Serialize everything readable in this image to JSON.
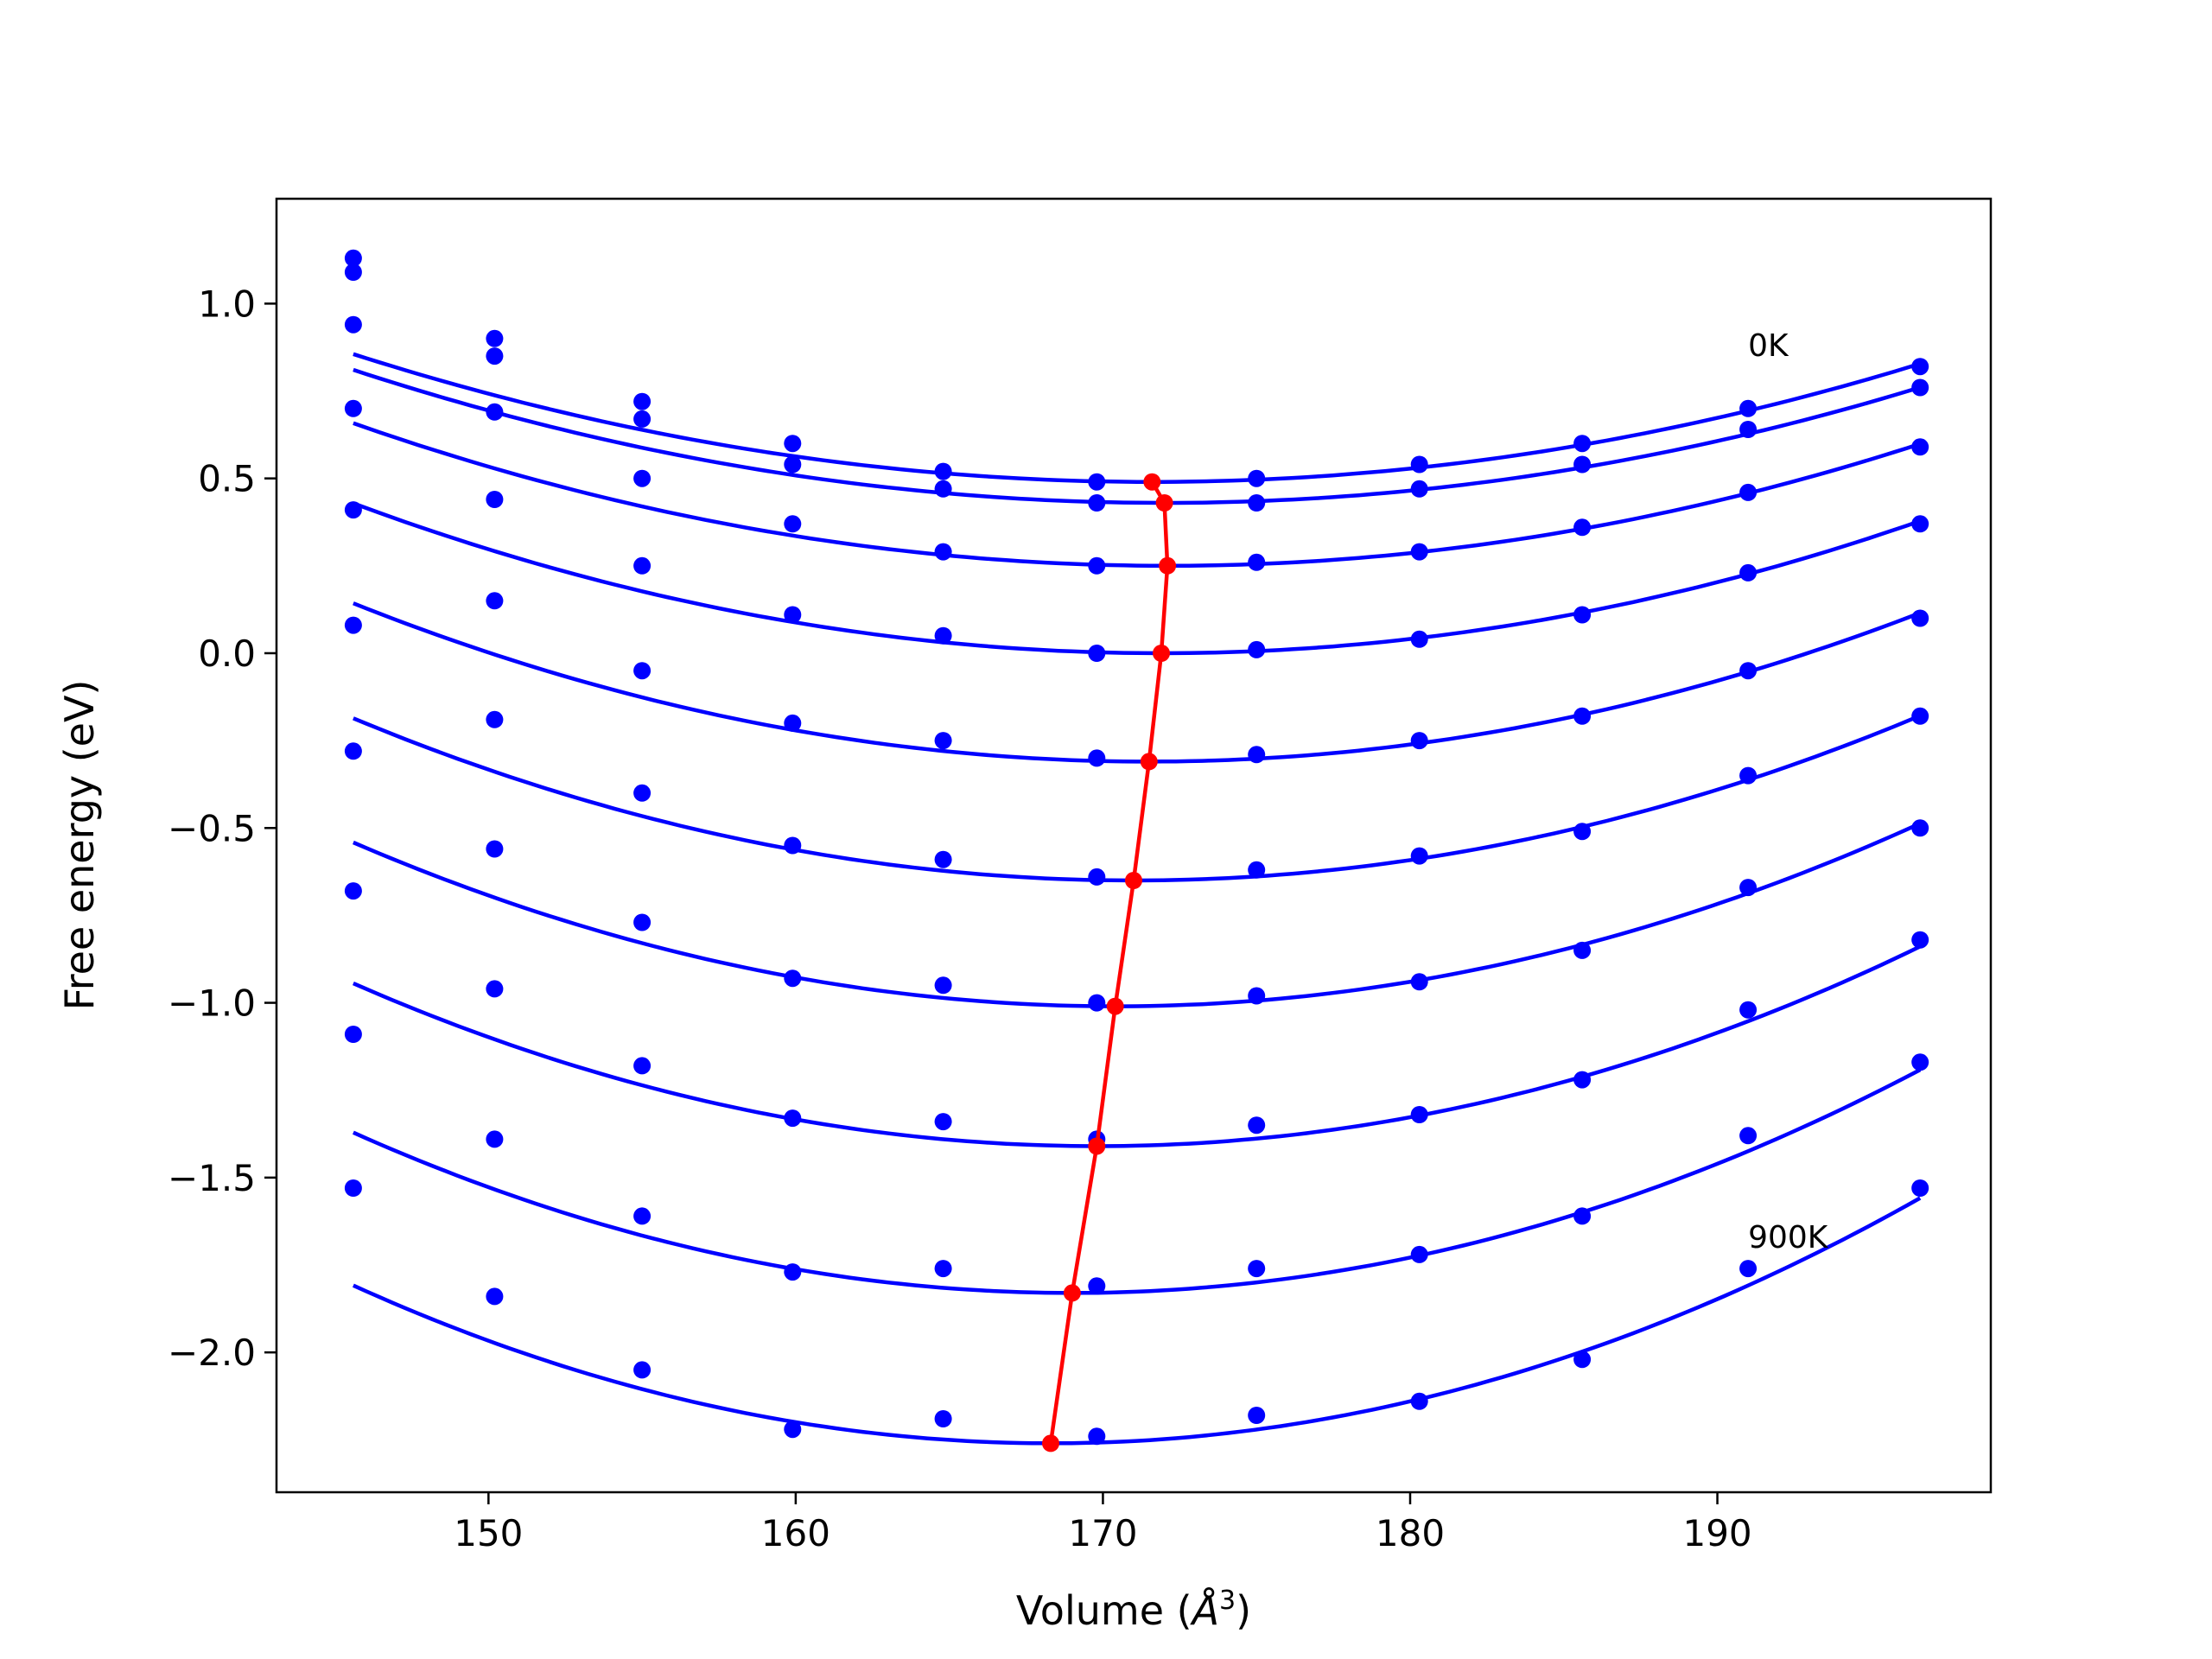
{
  "chart_data": {
    "type": "scatter",
    "title": "",
    "xlabel": "Volume (",
    "xlabel_symbol": "Å",
    "xlabel_exponent": "3",
    "xlabel_close": ")",
    "ylabel": "Free energy (eV)",
    "xlim": [
      143.1,
      198.9
    ],
    "ylim": [
      -2.4,
      1.3
    ],
    "xticks": [
      150,
      160,
      170,
      180,
      190
    ],
    "xtick_labels": [
      "150",
      "160",
      "170",
      "180",
      "190"
    ],
    "yticks": [
      1.0,
      0.5,
      0.0,
      -0.5,
      -1.0,
      -1.5,
      -2.0
    ],
    "ytick_labels": [
      "1.0",
      "0.5",
      "0.0",
      "−0.5",
      "−1.0",
      "−1.5",
      "−2.0"
    ],
    "grid": false,
    "annotations": [
      {
        "text": "0K",
        "x": 191.0,
        "y": 0.85
      },
      {
        "text": "900K",
        "x": 191.0,
        "y": -1.7
      }
    ],
    "volumes": [
      145.6,
      150.2,
      155.0,
      159.9,
      164.8,
      169.8,
      175.0,
      180.3,
      185.6,
      191.0,
      196.6
    ],
    "curve_color": "#0000ff",
    "minima_color": "#ff0000",
    "series": [
      {
        "values": [
          1.13,
          0.9,
          0.72,
          0.6,
          0.52,
          0.49,
          0.5,
          0.54,
          0.6,
          0.7,
          0.82
        ],
        "fit": {
          "v0": 171.6,
          "e0": 0.49,
          "a": 0.000541
        }
      },
      {
        "values": [
          1.09,
          0.85,
          0.67,
          0.54,
          0.47,
          0.43,
          0.43,
          0.47,
          0.54,
          0.64,
          0.76
        ],
        "fit": {
          "v0": 172.0,
          "e0": 0.43,
          "a": 0.000546
        }
      },
      {
        "values": [
          0.94,
          0.69,
          0.5,
          0.37,
          0.29,
          0.25,
          0.26,
          0.29,
          0.36,
          0.46,
          0.59
        ],
        "fit": {
          "v0": 172.1,
          "e0": 0.25,
          "a": 0.000581
        }
      },
      {
        "values": [
          0.7,
          0.44,
          0.25,
          0.11,
          0.05,
          0.0,
          0.01,
          0.04,
          0.11,
          0.23,
          0.37
        ],
        "fit": {
          "v0": 171.9,
          "e0": 0.0,
          "a": 0.00062
        }
      },
      {
        "values": [
          0.41,
          0.15,
          -0.05,
          -0.2,
          -0.25,
          -0.3,
          -0.29,
          -0.25,
          -0.18,
          -0.05,
          0.1
        ],
        "fit": {
          "v0": 171.5,
          "e0": -0.31,
          "a": 0.000675
        }
      },
      {
        "values": [
          0.08,
          -0.19,
          -0.4,
          -0.55,
          -0.59,
          -0.64,
          -0.62,
          -0.58,
          -0.51,
          -0.35,
          -0.18
        ],
        "fit": {
          "v0": 171.0,
          "e0": -0.65,
          "a": 0.000719
        }
      },
      {
        "values": [
          -0.28,
          -0.56,
          -0.77,
          -0.93,
          -0.95,
          -1.0,
          -0.98,
          -0.94,
          -0.85,
          -0.67,
          -0.5
        ],
        "fit": {
          "v0": 170.4,
          "e0": -1.01,
          "a": 0.000762
        }
      },
      {
        "values": [
          -0.68,
          -0.96,
          -1.18,
          -1.33,
          -1.34,
          -1.39,
          -1.35,
          -1.32,
          -1.22,
          -1.02,
          -0.82
        ],
        "fit": {
          "v0": 169.8,
          "e0": -1.41,
          "a": 0.000795
        }
      },
      {
        "values": [
          -1.09,
          -1.39,
          -1.61,
          -1.77,
          -1.76,
          -1.81,
          -1.76,
          -1.72,
          -1.61,
          -1.38,
          -1.17
        ],
        "fit": {
          "v0": 169.0,
          "e0": -1.83,
          "a": 0.000838
        }
      },
      {
        "values": [
          -1.53,
          -1.84,
          -2.05,
          -2.22,
          -2.19,
          -2.24,
          -2.18,
          -2.14,
          -2.02,
          -1.76,
          -1.53
        ],
        "fit": {
          "v0": 168.3,
          "e0": -2.26,
          "a": 0.000876
        }
      }
    ],
    "minima": {
      "x": [
        171.6,
        172.0,
        172.1,
        171.9,
        171.5,
        171.0,
        170.4,
        169.8,
        169.0,
        168.3
      ],
      "y": [
        0.49,
        0.43,
        0.25,
        0.0,
        -0.31,
        -0.65,
        -1.01,
        -1.41,
        -1.83,
        -2.26
      ]
    }
  }
}
